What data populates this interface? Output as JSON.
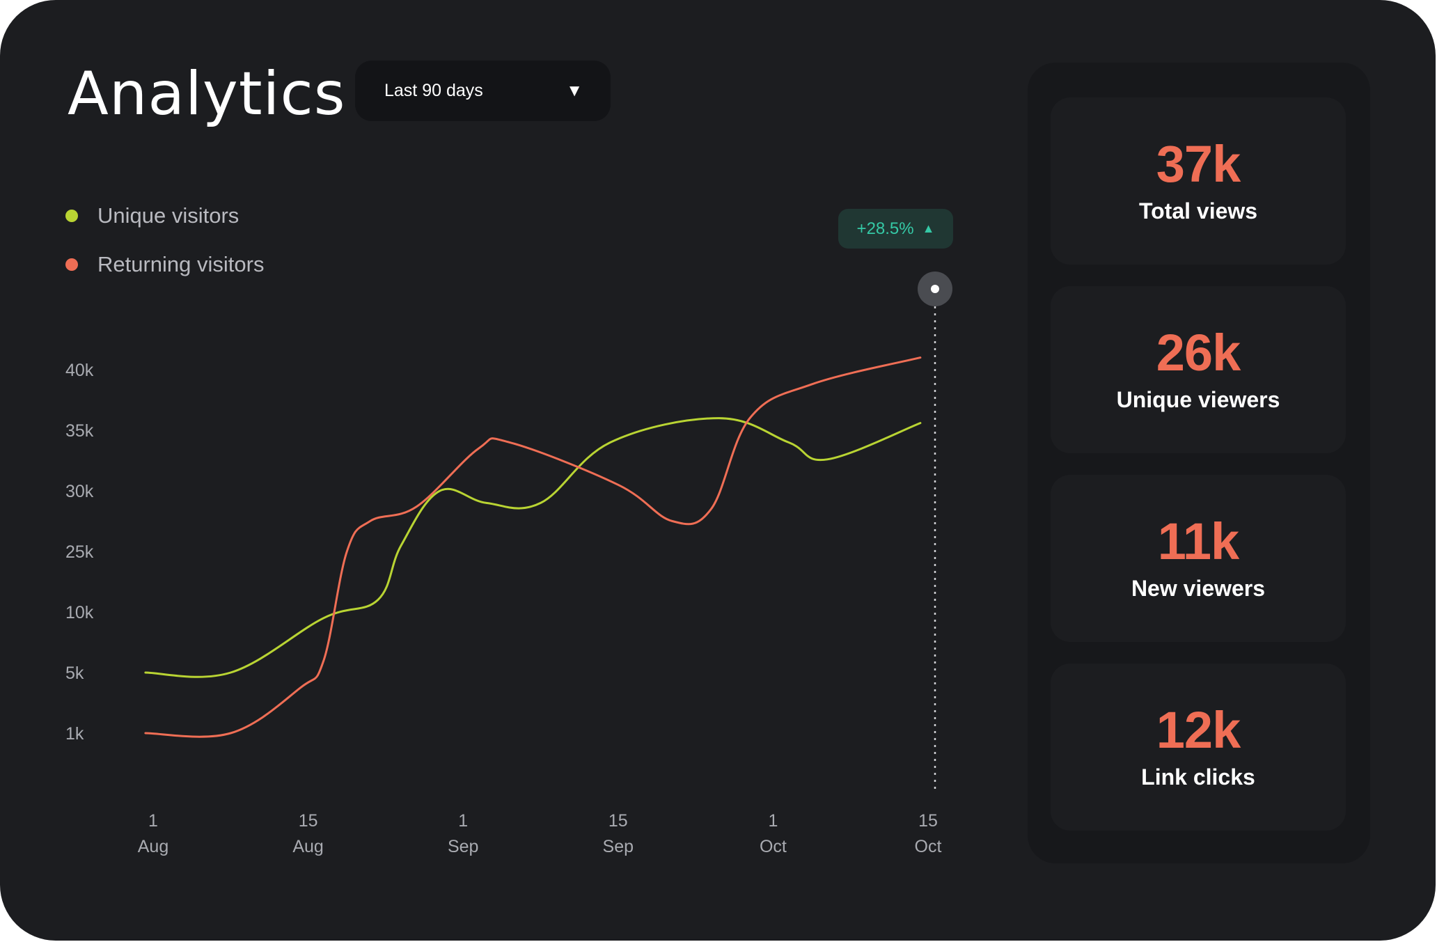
{
  "header": {
    "title": "Analytics",
    "range_label": "Last 90 days"
  },
  "legend": [
    {
      "label": "Unique visitors",
      "color": "#b9d433"
    },
    {
      "label": "Returning visitors",
      "color": "#ef6e55"
    }
  ],
  "badge": {
    "text": "+28.5%",
    "color": "#35c9a6"
  },
  "chart_data": {
    "type": "line",
    "y_ticks": [
      "40k",
      "35k",
      "30k",
      "25k",
      "10k",
      "5k",
      "1k"
    ],
    "x_ticks": [
      {
        "day": "1",
        "month": "Aug"
      },
      {
        "day": "15",
        "month": "Aug"
      },
      {
        "day": "1",
        "month": "Sep"
      },
      {
        "day": "15",
        "month": "Sep"
      },
      {
        "day": "1",
        "month": "Oct"
      },
      {
        "day": "15",
        "month": "Oct"
      }
    ],
    "grid": false,
    "legend_position": "top-left",
    "series": [
      {
        "name": "Unique visitors",
        "color": "#b9d433",
        "points": [
          [
            -0.05,
            5
          ],
          [
            0.5,
            5
          ],
          [
            1.1,
            9.5
          ],
          [
            1.45,
            13
          ],
          [
            1.6,
            25.5
          ],
          [
            1.85,
            30
          ],
          [
            2.15,
            29
          ],
          [
            2.5,
            29
          ],
          [
            2.95,
            34
          ],
          [
            3.65,
            36
          ],
          [
            4.1,
            34
          ],
          [
            4.35,
            32.6
          ],
          [
            4.95,
            35.6
          ]
        ]
      },
      {
        "name": "Returning visitors",
        "color": "#ef6e55",
        "points": [
          [
            -0.05,
            1
          ],
          [
            0.5,
            1
          ],
          [
            0.95,
            4
          ],
          [
            1.1,
            6
          ],
          [
            1.25,
            25
          ],
          [
            1.4,
            27.5
          ],
          [
            1.7,
            28.7
          ],
          [
            2.1,
            33.5
          ],
          [
            2.3,
            34
          ],
          [
            3.0,
            30.5
          ],
          [
            3.35,
            27.5
          ],
          [
            3.6,
            28.5
          ],
          [
            3.85,
            36
          ],
          [
            4.25,
            38.8
          ],
          [
            4.95,
            41
          ]
        ]
      }
    ]
  },
  "stats": [
    {
      "value": "37k",
      "label": "Total views"
    },
    {
      "value": "26k",
      "label": "Unique viewers"
    },
    {
      "value": "11k",
      "label": "New viewers"
    },
    {
      "value": "12k",
      "label": "Link clicks"
    }
  ]
}
